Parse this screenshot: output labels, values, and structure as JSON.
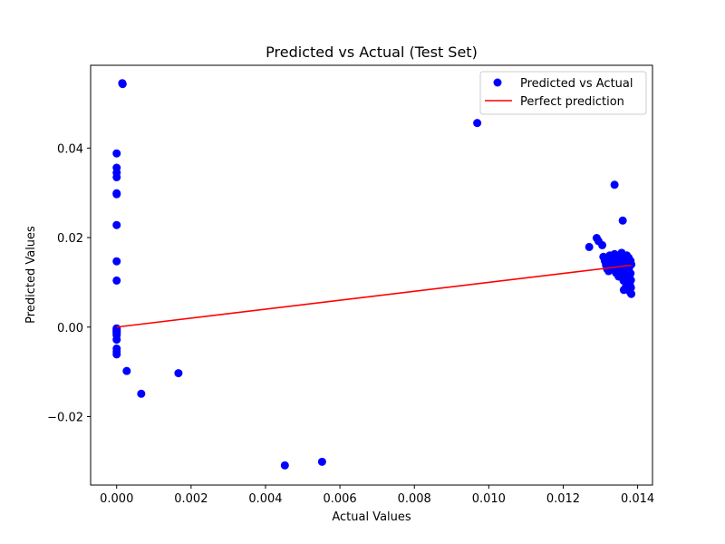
{
  "chart_data": {
    "type": "scatter",
    "title": "Predicted vs Actual (Test Set)",
    "xlabel": "Actual Values",
    "ylabel": "Predicted Values",
    "xlim": [
      -0.0007,
      0.0144
    ],
    "ylim": [
      -0.0353,
      0.0585
    ],
    "xticks": [
      0.0,
      0.002,
      0.004,
      0.006,
      0.008,
      0.01,
      0.012,
      0.014
    ],
    "xtick_labels": [
      "0.000",
      "0.002",
      "0.004",
      "0.006",
      "0.008",
      "0.010",
      "0.012",
      "0.014"
    ],
    "yticks": [
      -0.02,
      0.0,
      0.02,
      0.04
    ],
    "ytick_labels": [
      "−0.02",
      "0.00",
      "0.02",
      "0.04"
    ],
    "grid": false,
    "legend_position": "top-right",
    "series": [
      {
        "name": "Predicted vs Actual",
        "kind": "scatter",
        "color": "#0000ff",
        "points": [
          [
            0.00015,
            0.0545
          ],
          [
            0.00016,
            0.0543
          ],
          [
            0.0,
            0.0388
          ],
          [
            0.0,
            0.0356
          ],
          [
            0.0,
            0.0345
          ],
          [
            0.0,
            0.0335
          ],
          [
            0.0,
            0.0299
          ],
          [
            0.0,
            0.0297
          ],
          [
            0.0,
            0.0228
          ],
          [
            0.0,
            0.0147
          ],
          [
            0.0,
            0.0104
          ],
          [
            0.0,
            -0.0003
          ],
          [
            0.0,
            -0.0005
          ],
          [
            0.0,
            -0.0008
          ],
          [
            0.0,
            -0.001
          ],
          [
            0.0,
            -0.0012
          ],
          [
            0.0,
            -0.0015
          ],
          [
            0.0,
            -0.0018
          ],
          [
            0.0,
            -0.0028
          ],
          [
            0.0,
            -0.0048
          ],
          [
            0.0,
            -0.0055
          ],
          [
            0.0,
            -0.0061
          ],
          [
            0.00027,
            -0.0098
          ],
          [
            0.00066,
            -0.0149
          ],
          [
            0.00166,
            -0.0103
          ],
          [
            0.00452,
            -0.0309
          ],
          [
            0.00552,
            -0.0301
          ],
          [
            0.00969,
            0.0456
          ],
          [
            0.01338,
            0.0318
          ],
          [
            0.0136,
            0.0238
          ],
          [
            0.0127,
            0.0179
          ],
          [
            0.0129,
            0.0199
          ],
          [
            0.01295,
            0.0192
          ],
          [
            0.01305,
            0.0183
          ],
          [
            0.01308,
            0.0157
          ],
          [
            0.01312,
            0.0148
          ],
          [
            0.01315,
            0.0139
          ],
          [
            0.01318,
            0.013
          ],
          [
            0.01322,
            0.0125
          ],
          [
            0.01325,
            0.016
          ],
          [
            0.01328,
            0.0152
          ],
          [
            0.0133,
            0.0144
          ],
          [
            0.01333,
            0.0136
          ],
          [
            0.01335,
            0.0128
          ],
          [
            0.01338,
            0.0163
          ],
          [
            0.0134,
            0.0149
          ],
          [
            0.01342,
            0.0121
          ],
          [
            0.01345,
            0.0155
          ],
          [
            0.01347,
            0.014
          ],
          [
            0.01349,
            0.0113
          ],
          [
            0.01351,
            0.0158
          ],
          [
            0.01353,
            0.0133
          ],
          [
            0.01355,
            0.0118
          ],
          [
            0.01357,
            0.0166
          ],
          [
            0.01359,
            0.0145
          ],
          [
            0.0136,
            0.0125
          ],
          [
            0.01362,
            0.0104
          ],
          [
            0.01363,
            0.0083
          ],
          [
            0.01365,
            0.015
          ],
          [
            0.01366,
            0.0137
          ],
          [
            0.01368,
            0.0115
          ],
          [
            0.01369,
            0.0092
          ],
          [
            0.01371,
            0.016
          ],
          [
            0.01372,
            0.0142
          ],
          [
            0.01373,
            0.0126
          ],
          [
            0.01374,
            0.01
          ],
          [
            0.01375,
            0.0086
          ],
          [
            0.01376,
            0.0155
          ],
          [
            0.01377,
            0.0132
          ],
          [
            0.01378,
            0.011
          ],
          [
            0.01379,
            0.0095
          ],
          [
            0.0138,
            0.0078
          ],
          [
            0.01381,
            0.0148
          ],
          [
            0.01381,
            0.012
          ],
          [
            0.01382,
            0.0105
          ],
          [
            0.01382,
            0.0088
          ],
          [
            0.01383,
            0.014
          ],
          [
            0.01383,
            0.0074
          ]
        ]
      },
      {
        "name": "Perfect prediction",
        "kind": "line",
        "color": "#ff0000",
        "points": [
          [
            0.0,
            0.0
          ],
          [
            0.01383,
            0.01383
          ]
        ]
      }
    ]
  }
}
